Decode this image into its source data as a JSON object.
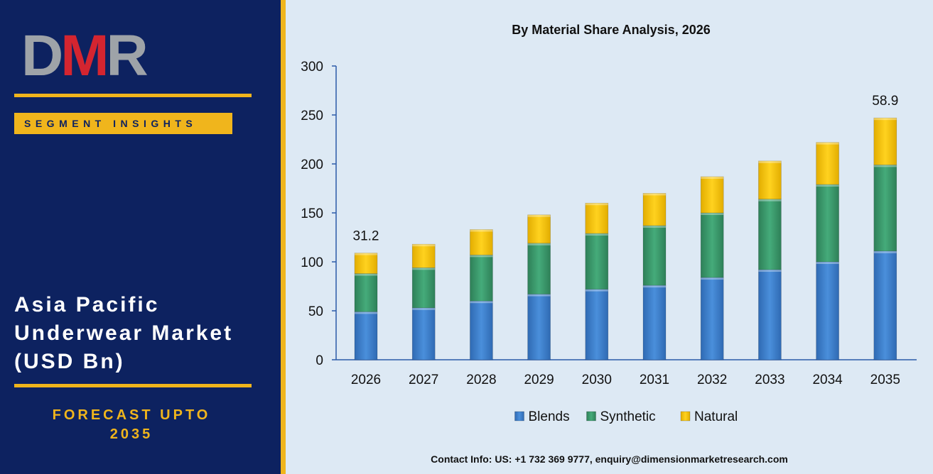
{
  "brand": {
    "logo_d": "D",
    "logo_m": "M",
    "logo_r": "R",
    "segment_label": "SEGMENT INSIGHTS"
  },
  "panel": {
    "title_lines": [
      "Asia Pacific",
      "Underwear Market",
      "(USD Bn)"
    ],
    "forecast_line1": "FORECAST UPTO",
    "forecast_line2": "2035"
  },
  "contact": "Contact Info: US: +1 732 369 9777, enquiry@dimensionmarketresearch.com",
  "colors": {
    "navy": "#0d2260",
    "gold": "#f0b51c",
    "logo_red": "#d42530",
    "logo_grey": "#9ea3a8",
    "blends": "#3b7dcc",
    "synthetic": "#3a9a6c",
    "natural": "#f5c40a"
  },
  "chart_data": {
    "type": "bar",
    "stacked": true,
    "title": "By Material Share Analysis, 2026",
    "categories": [
      "2026",
      "2027",
      "2028",
      "2029",
      "2030",
      "2031",
      "2032",
      "2033",
      "2034",
      "2035"
    ],
    "series": [
      {
        "name": "Blends",
        "color": "#3b7dcc",
        "values": [
          49,
          53,
          60,
          67,
          72,
          76,
          84,
          92,
          100,
          111
        ]
      },
      {
        "name": "Synthetic",
        "color": "#3a9a6c",
        "values": [
          39,
          41,
          47,
          52,
          57,
          61,
          66,
          72,
          79,
          88
        ]
      },
      {
        "name": "Natural",
        "color": "#f5c40a",
        "values": [
          21,
          24,
          26,
          29,
          31,
          33,
          37,
          39,
          43,
          48
        ]
      }
    ],
    "annotations": [
      {
        "category": "2026",
        "text": "31.2"
      },
      {
        "category": "2035",
        "text": "58.9"
      }
    ],
    "yticks": [
      "0",
      "50",
      "100",
      "150",
      "200",
      "250",
      "300"
    ],
    "ylim": [
      0,
      300
    ],
    "grid": false,
    "legend_position": "bottom"
  }
}
